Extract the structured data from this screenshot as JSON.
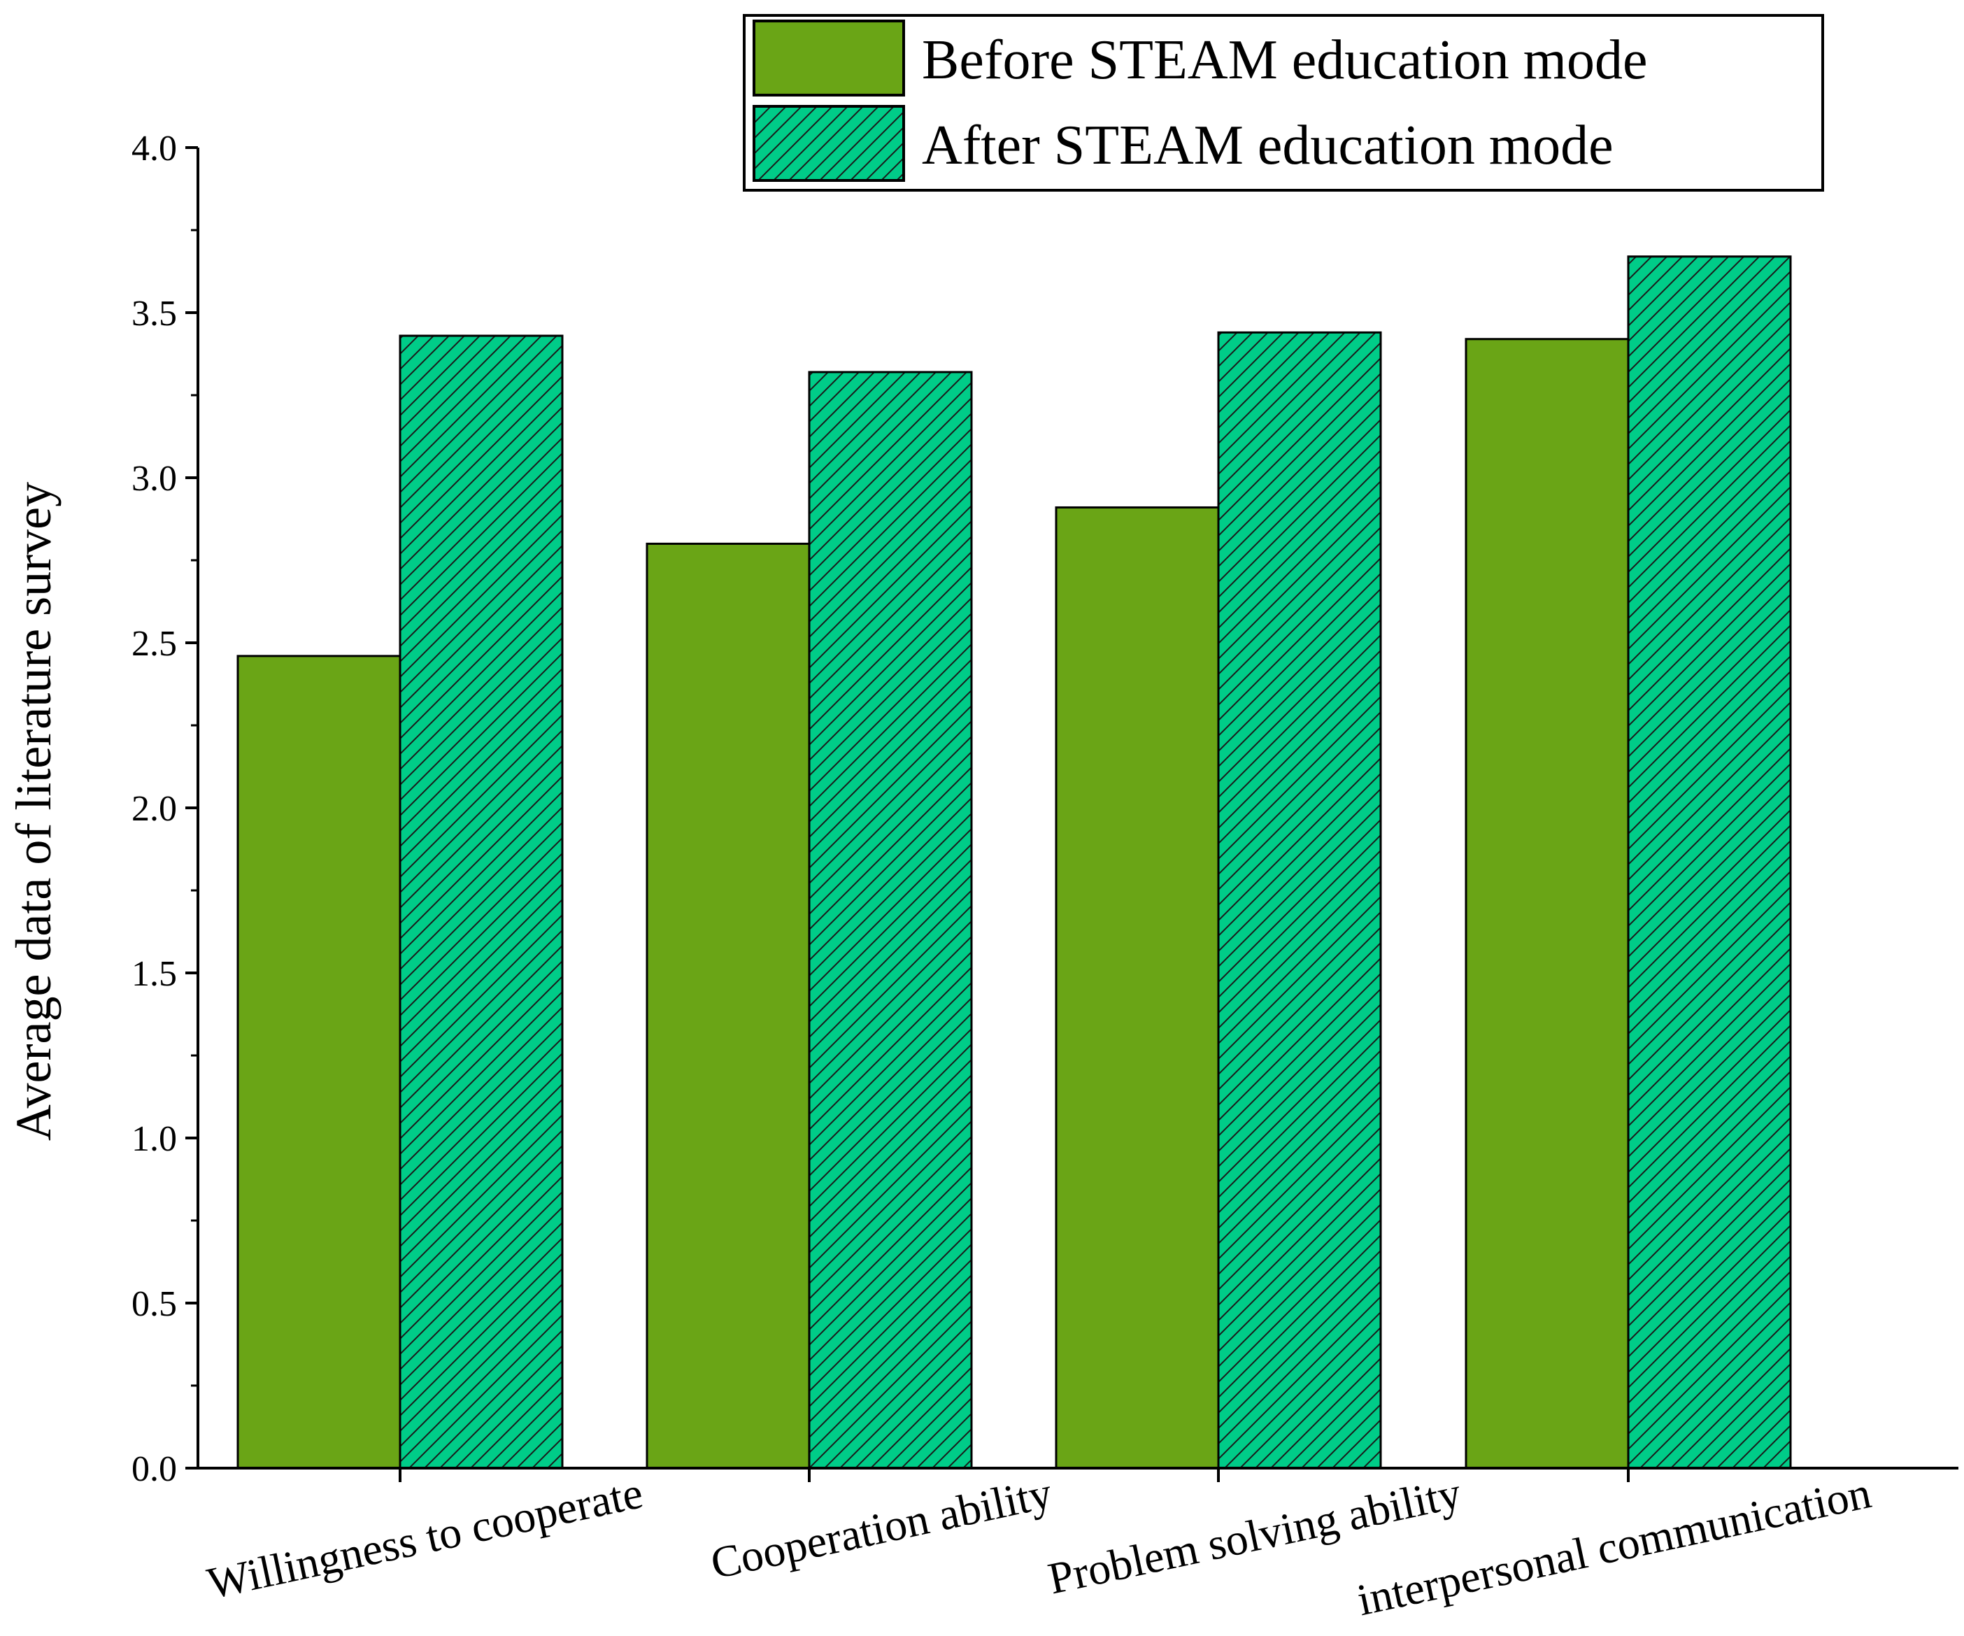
{
  "chart_data": {
    "type": "bar",
    "categories": [
      "Willingness to cooperate",
      "Cooperation ability",
      "Problem solving ability",
      "interpersonal communication"
    ],
    "series": [
      {
        "name": "Before STEAM education mode",
        "values": [
          2.46,
          2.8,
          2.91,
          3.42
        ],
        "color": "#6aa516",
        "pattern": "solid"
      },
      {
        "name": "After STEAM education mode",
        "values": [
          3.43,
          3.32,
          3.44,
          3.67
        ],
        "color": "#00cc88",
        "pattern": "diagonal-hatch"
      }
    ],
    "ylabel": "Average data of literature survey",
    "xlabel": "",
    "ylim": [
      0,
      4.0
    ],
    "yticks": [
      "0.0",
      "0.5",
      "1.0",
      "1.5",
      "2.0",
      "2.5",
      "3.0",
      "3.5",
      "4.0"
    ],
    "legend_position": "top-right",
    "grid": false
  }
}
